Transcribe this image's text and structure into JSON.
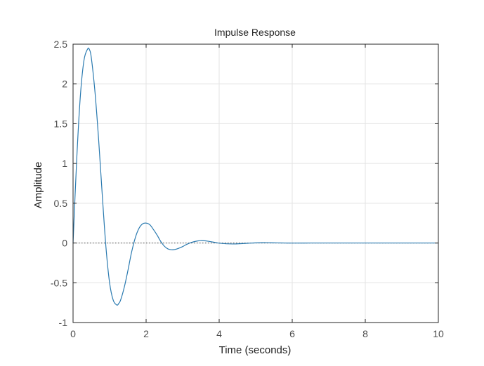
{
  "chart_data": {
    "type": "line",
    "title": "Impulse Response",
    "xlabel": "Time (seconds)",
    "ylabel": "Amplitude",
    "xlim": [
      0,
      10
    ],
    "ylim": [
      -1,
      2.5
    ],
    "grid": true,
    "x_ticks": [
      0,
      2,
      4,
      6,
      8,
      10
    ],
    "x_tick_labels": [
      "0",
      "2",
      "4",
      "6",
      "8",
      "10"
    ],
    "y_ticks": [
      -1,
      -0.5,
      0,
      0.5,
      1,
      1.5,
      2,
      2.5
    ],
    "y_tick_labels": [
      "-1",
      "-0.5",
      "0",
      "0.5",
      "1",
      "1.5",
      "2",
      "2.5"
    ],
    "reference_line": {
      "y": 0,
      "style": "dotted",
      "color": "#555555"
    },
    "series": [
      {
        "name": "Impulse response",
        "color": "#2a7ab0",
        "x": [
          0,
          0.1,
          0.2,
          0.3,
          0.4,
          0.45,
          0.5,
          0.6,
          0.7,
          0.8,
          0.9,
          1.0,
          1.1,
          1.2,
          1.25,
          1.3,
          1.4,
          1.5,
          1.6,
          1.7,
          1.8,
          1.9,
          2.0,
          2.1,
          2.2,
          2.3,
          2.4,
          2.5,
          2.6,
          2.7,
          2.8,
          2.9,
          3.0,
          3.1,
          3.2,
          3.3,
          3.4,
          3.5,
          3.6,
          3.7,
          3.8,
          3.9,
          4.0,
          4.2,
          4.4,
          4.6,
          4.8,
          5.0,
          5.2,
          5.4,
          5.6,
          5.8,
          6.0,
          6.5,
          7.0,
          8.0,
          9.0,
          10.0
        ],
        "y": [
          0,
          1.05,
          1.85,
          2.3,
          2.44,
          2.43,
          2.33,
          1.9,
          1.3,
          0.6,
          -0.05,
          -0.5,
          -0.72,
          -0.78,
          -0.76,
          -0.72,
          -0.56,
          -0.35,
          -0.12,
          0.06,
          0.18,
          0.24,
          0.25,
          0.23,
          0.17,
          0.1,
          0.02,
          -0.04,
          -0.075,
          -0.085,
          -0.08,
          -0.065,
          -0.045,
          -0.02,
          0.0,
          0.015,
          0.025,
          0.03,
          0.028,
          0.022,
          0.014,
          0.006,
          -0.002,
          -0.01,
          -0.012,
          -0.008,
          -0.003,
          0.002,
          0.004,
          0.003,
          0.001,
          0.0,
          -0.001,
          0.0,
          0.0,
          0.0,
          0.0,
          0.0
        ]
      }
    ]
  }
}
